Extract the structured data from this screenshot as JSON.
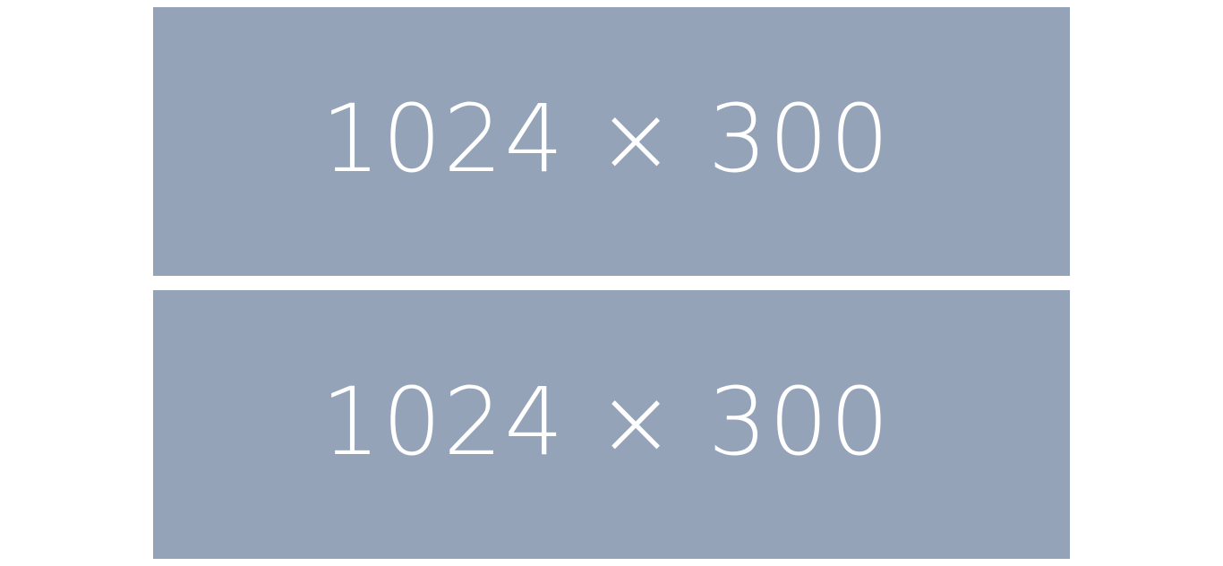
{
  "banners": [
    {
      "label": "1024 × 300",
      "color": "#94a3b8",
      "text_color": "#ffffff"
    },
    {
      "label": "1024 × 300",
      "color": "#94a3b8",
      "text_color": "#ffffff"
    }
  ],
  "page_background": "#ffffff"
}
